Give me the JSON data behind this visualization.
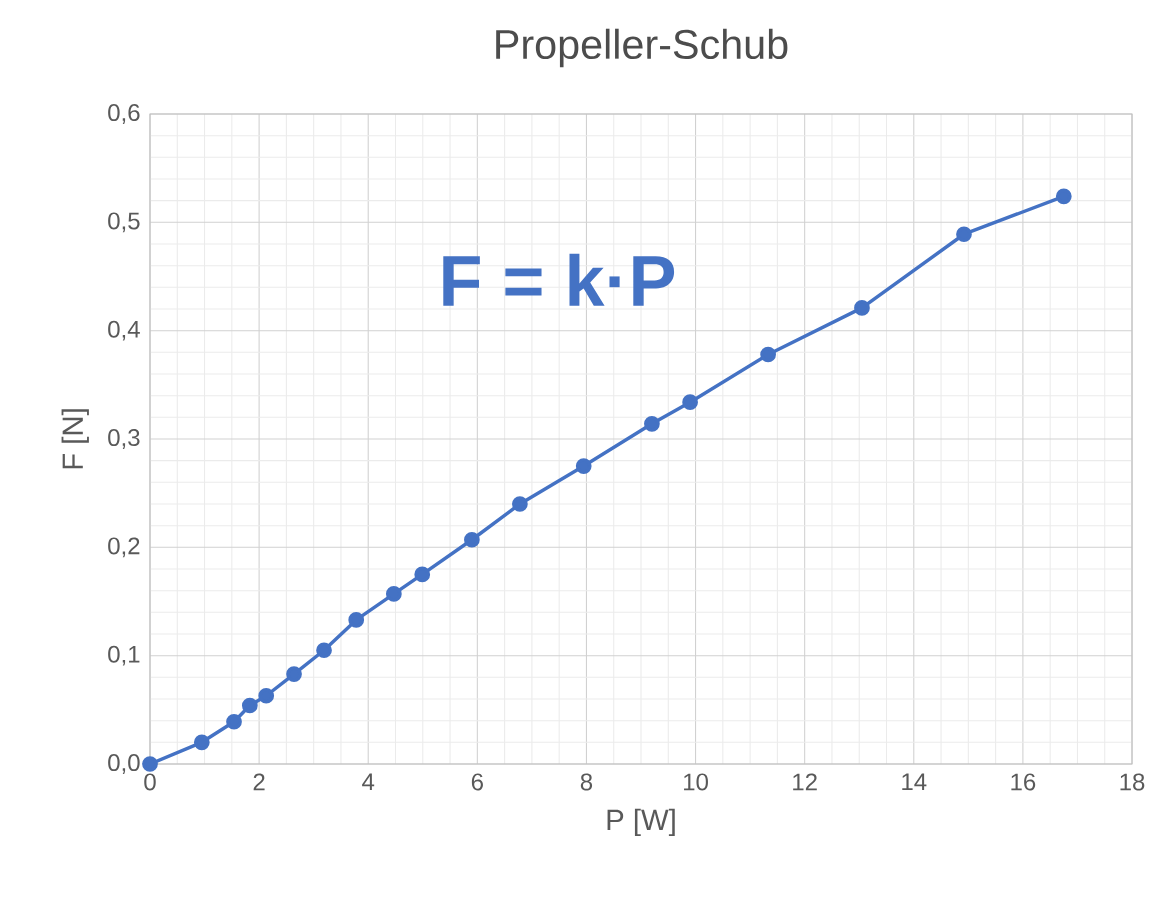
{
  "chart_data": {
    "type": "line",
    "title": "Propeller-Schub",
    "xlabel": "P [W]",
    "ylabel": "F [N]",
    "annotations": [
      "F = k·P"
    ],
    "x": [
      0,
      0.95,
      1.54,
      1.83,
      2.13,
      2.64,
      3.19,
      3.78,
      4.47,
      4.99,
      5.9,
      6.78,
      7.95,
      9.2,
      9.9,
      11.33,
      13.05,
      14.92,
      16.75
    ],
    "series": [
      {
        "color": "#4472c4",
        "values": [
          0,
          0.02,
          0.039,
          0.054,
          0.063,
          0.083,
          0.105,
          0.133,
          0.157,
          0.175,
          0.207,
          0.24,
          0.275,
          0.314,
          0.334,
          0.378,
          0.421,
          0.489,
          0.524
        ]
      }
    ],
    "xlim": [
      0,
      18
    ],
    "ylim": [
      0,
      0.6
    ],
    "xticks": [
      0,
      2,
      4,
      6,
      8,
      10,
      12,
      14,
      16,
      18
    ],
    "yticks": [
      {
        "value": 0,
        "label": "0,0"
      },
      {
        "value": 0.1,
        "label": "0,1"
      },
      {
        "value": 0.2,
        "label": "0,2"
      },
      {
        "value": 0.3,
        "label": "0,3"
      },
      {
        "value": 0.4,
        "label": "0,4"
      },
      {
        "value": 0.5,
        "label": "0,5"
      },
      {
        "value": 0.6,
        "label": "0,6"
      }
    ],
    "grid": true,
    "marker": "circle",
    "line_style": "solid"
  }
}
